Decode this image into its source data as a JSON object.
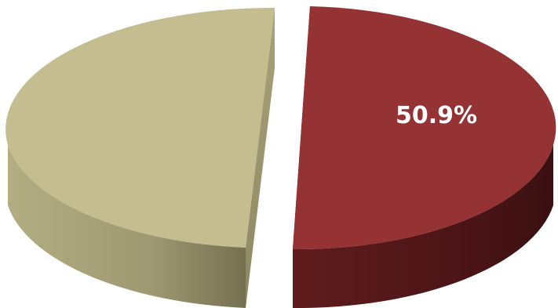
{
  "chart_data": {
    "type": "pie",
    "style": "3d-exploded",
    "slices": [
      {
        "value": 50.9,
        "label": "50.9%",
        "color": "#953234",
        "side_color": "#6a2223",
        "exploded": true
      },
      {
        "value": 49.1,
        "label": "",
        "color": "#c3bd90",
        "side_color": "#9a9670",
        "exploded": true
      }
    ],
    "legend": "none"
  }
}
